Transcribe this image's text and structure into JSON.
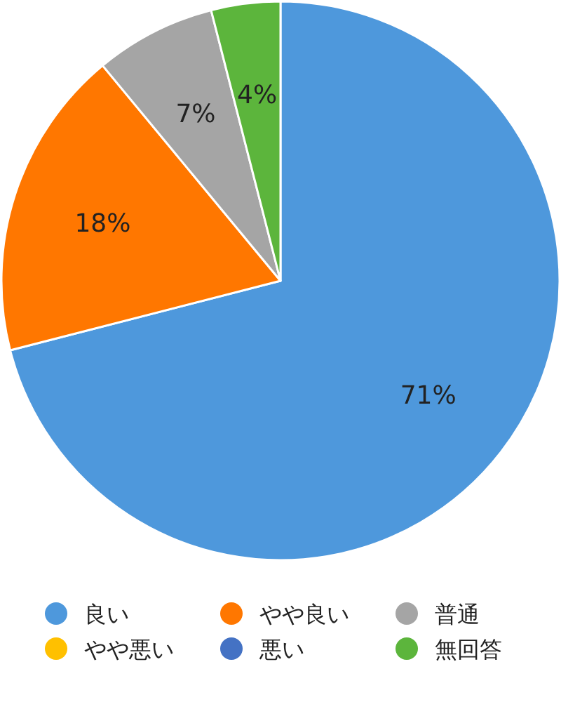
{
  "chart_data": {
    "type": "pie",
    "categories": [
      "良い",
      "やや良い",
      "普通",
      "やや悪い",
      "悪い",
      "無回答"
    ],
    "values": [
      71,
      18,
      7,
      0,
      0,
      4
    ],
    "colors": [
      "#4e98dc",
      "#ff7700",
      "#a5a5a5",
      "#ffc000",
      "#4472c4",
      "#5cb53c"
    ],
    "value_labels": [
      "71%",
      "18%",
      "7%",
      null,
      null,
      "4%"
    ],
    "legend": "bottom"
  }
}
